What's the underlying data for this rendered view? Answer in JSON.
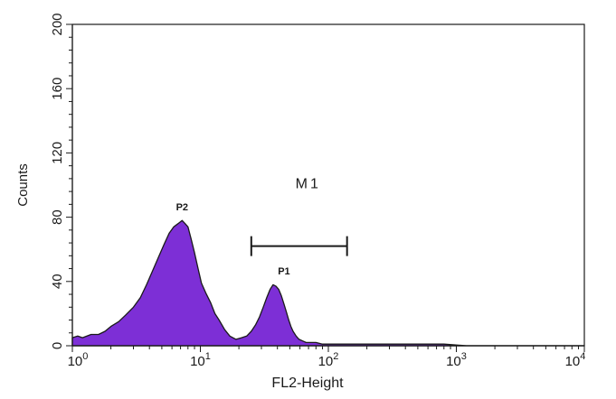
{
  "chart_data": {
    "type": "area",
    "title": "",
    "xlabel": "FL2-Height",
    "ylabel": "Counts",
    "x_scale": "log",
    "xlim": [
      1,
      10000
    ],
    "ylim": [
      0,
      200
    ],
    "x_ticks": [
      {
        "value": 1,
        "base": "10",
        "exp": "0"
      },
      {
        "value": 10,
        "base": "10",
        "exp": "1"
      },
      {
        "value": 100,
        "base": "10",
        "exp": "2"
      },
      {
        "value": 1000,
        "base": "10",
        "exp": "3"
      },
      {
        "value": 10000,
        "base": "10",
        "exp": "4"
      }
    ],
    "y_ticks": [
      {
        "value": 0,
        "label": "0"
      },
      {
        "value": 40,
        "label": "40"
      },
      {
        "value": 80,
        "label": "80"
      },
      {
        "value": 120,
        "label": "120"
      },
      {
        "value": 160,
        "label": "160"
      },
      {
        "value": 200,
        "label": "200"
      }
    ],
    "grid": false,
    "fill_color": "#7d2fd6",
    "edge_color": "#1a1a1a",
    "series": [
      {
        "x": [
          1,
          1.1,
          1.2,
          1.4,
          1.6,
          1.8,
          2.0,
          2.3,
          2.6,
          3.0,
          3.4,
          3.8,
          4.2,
          4.7,
          5.2,
          5.7,
          6.2,
          6.7,
          7.2,
          7.6,
          8.0,
          8.5,
          9.0,
          9.6,
          10.2,
          11.0,
          12.0,
          13.0,
          14.0,
          15.5,
          17.0,
          19.0,
          21.0,
          23.0,
          25.0,
          27.0,
          29.0,
          31.0,
          33.0,
          35.0,
          37.0,
          39.0,
          41.0,
          43.0,
          45.0,
          47.0,
          49.0,
          51.0,
          53.0,
          56.0,
          59.0,
          63.0,
          67.0,
          72.0,
          80.0,
          90.0,
          100.0,
          120.0,
          150.0,
          200.0,
          300.0,
          500.0,
          800.0,
          1200.0,
          2000.0,
          3000.0,
          5000.0,
          8000.0,
          10000.0
        ],
        "values": [
          5,
          6,
          5,
          7,
          7,
          9,
          12,
          15,
          19,
          24,
          30,
          38,
          46,
          55,
          63,
          70,
          74,
          76,
          78,
          76,
          74,
          66,
          58,
          48,
          39,
          33,
          27,
          20,
          16,
          10,
          6,
          4,
          5,
          6,
          9,
          13,
          18,
          24,
          30,
          35,
          38,
          37,
          35,
          31,
          26,
          21,
          16,
          12,
          9,
          6,
          4,
          3,
          2,
          2,
          2,
          1,
          1,
          1,
          1,
          1,
          1,
          1,
          1,
          0,
          0,
          0,
          0,
          0,
          0
        ]
      }
    ],
    "annotations": {
      "gate_label": "M1",
      "gate_range": [
        25,
        140
      ],
      "gate_y": 62,
      "gate_label_y": 98,
      "peaks": [
        {
          "label": "P2",
          "x": 7.2,
          "y": 82
        },
        {
          "label": "P1",
          "x": 45,
          "y": 42
        }
      ]
    }
  }
}
